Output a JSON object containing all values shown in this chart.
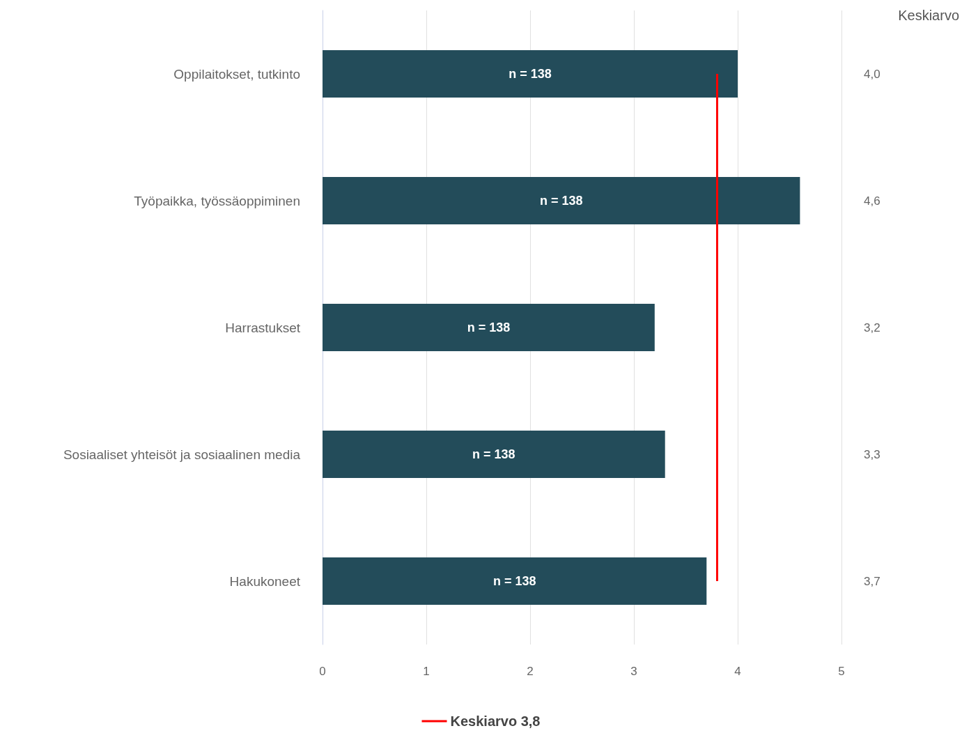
{
  "chart_data": {
    "type": "bar",
    "orientation": "horizontal",
    "categories": [
      "Oppilaitokset, tutkinto",
      "Työpaikka, työssäoppiminen",
      "Harrastukset",
      "Sosiaaliset yhteisöt ja sosiaalinen media",
      "Hakukoneet"
    ],
    "values": [
      4.0,
      4.6,
      3.2,
      3.3,
      3.7
    ],
    "value_labels": [
      "4,0",
      "4,6",
      "3,2",
      "3,3",
      "3,7"
    ],
    "color": "#234c5a",
    "xlim": [
      0,
      5
    ],
    "xticks": [
      0,
      1,
      2,
      3,
      4,
      5
    ],
    "grid": "x",
    "legend": "bottom",
    "ref_lines": [
      {
        "axis": "x",
        "value": 3.8,
        "label": "Keskiarvo 3,8",
        "color": "#ff0000"
      }
    ],
    "annotations": [
      "Keskiarvo",
      "n = 138",
      "n = 138",
      "n = 138",
      "n = 138",
      "n = 138"
    ]
  }
}
